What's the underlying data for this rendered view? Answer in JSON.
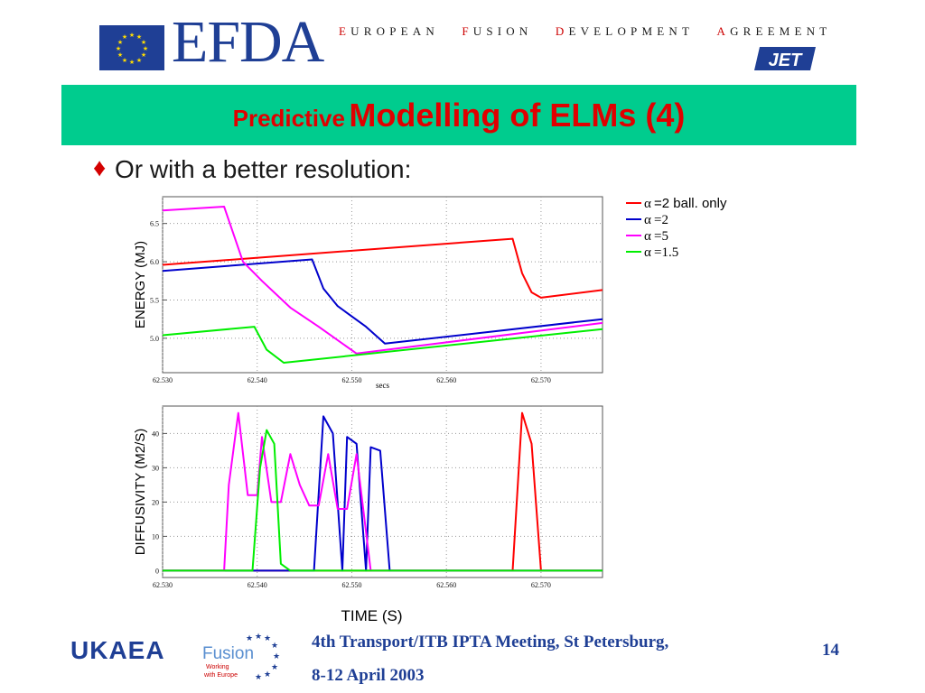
{
  "header": {
    "logo_text": "EFDA",
    "org_name": [
      {
        "cap": "E",
        "rest": "UROPEAN"
      },
      {
        "cap": "F",
        "rest": "USION"
      },
      {
        "cap": "D",
        "rest": "EVELOPMENT"
      },
      {
        "cap": "A",
        "rest": "GREEMENT"
      }
    ],
    "jet_logo_text": "JET"
  },
  "title": {
    "part1": "Predictive",
    "part2": "Modelling of ELMs (4)"
  },
  "bullet": {
    "symbol": "♦",
    "text": "Or with a better resolution:"
  },
  "colors": {
    "title_bar": "#00cc8e",
    "title_text": "#e00000",
    "navy": "#1f3f95"
  },
  "chart_data": [
    {
      "type": "line",
      "ylabel": "ENERGY (MJ)",
      "xlabel": "secs",
      "xlim": [
        62.53,
        62.5765
      ],
      "ylim": [
        4.55,
        6.85
      ],
      "xticks": [
        "62.530",
        "62.540",
        "62.550",
        "62.560",
        "62.570"
      ],
      "xtick_values": [
        62.53,
        62.54,
        62.55,
        62.56,
        62.57
      ],
      "yticks": [
        "5.0",
        "5.5",
        "6.0",
        "6.5"
      ],
      "ytick_values": [
        5.0,
        5.5,
        6.0,
        6.5
      ],
      "legend_position": "right",
      "series": [
        {
          "name": "α=2 ball. only",
          "legend_label": "=2 ball. only",
          "color": "#ff0000",
          "x": [
            62.53,
            62.567,
            62.568,
            62.569,
            62.57,
            62.5765
          ],
          "y": [
            5.96,
            6.3,
            5.85,
            5.6,
            5.53,
            5.63
          ]
        },
        {
          "name": "α=2",
          "legend_label": "=2",
          "color": "#0000cc",
          "x": [
            62.53,
            62.5458,
            62.547,
            62.5485,
            62.5515,
            62.5535,
            62.5765
          ],
          "y": [
            5.88,
            6.03,
            5.65,
            5.42,
            5.15,
            4.93,
            5.25
          ]
        },
        {
          "name": "α=5",
          "legend_label": "=5",
          "color": "#ff00ff",
          "x": [
            62.53,
            62.5365,
            62.5385,
            62.5405,
            62.5435,
            62.5465,
            62.5505,
            62.5765
          ],
          "y": [
            6.67,
            6.72,
            6.0,
            5.75,
            5.4,
            5.15,
            4.8,
            5.2
          ]
        },
        {
          "name": "α=1.5",
          "legend_label": "=1.5",
          "color": "#00ee00",
          "x": [
            62.53,
            62.5397,
            62.541,
            62.5428,
            62.5765
          ],
          "y": [
            5.04,
            5.15,
            4.85,
            4.68,
            5.12
          ]
        }
      ]
    },
    {
      "type": "line",
      "ylabel": "DIFFUSIVITY (M2/S)",
      "xlabel": "TIME (S)",
      "xlim": [
        62.53,
        62.5765
      ],
      "ylim": [
        -2,
        48
      ],
      "xticks": [
        "62.530",
        "62.540",
        "62.550",
        "62.560",
        "62.570"
      ],
      "xtick_values": [
        62.53,
        62.54,
        62.55,
        62.56,
        62.57
      ],
      "yticks": [
        "0",
        "10",
        "20",
        "30",
        "40"
      ],
      "ytick_values": [
        0,
        10,
        20,
        30,
        40
      ],
      "series": [
        {
          "name": "α=2 ball. only",
          "color": "#ff0000",
          "x": [
            62.53,
            62.567,
            62.568,
            62.569,
            62.57,
            62.5765
          ],
          "y": [
            0,
            0,
            46,
            37,
            0,
            0
          ]
        },
        {
          "name": "α=2",
          "color": "#0000cc",
          "x": [
            62.53,
            62.546,
            62.547,
            62.548,
            62.549,
            62.5495,
            62.5505,
            62.5515,
            62.552,
            62.553,
            62.554,
            62.555,
            62.5765
          ],
          "y": [
            0,
            0,
            45,
            40,
            0,
            39,
            37,
            0,
            36,
            35,
            0,
            0,
            0
          ]
        },
        {
          "name": "α=5",
          "color": "#ff00ff",
          "x": [
            62.53,
            62.5365,
            62.537,
            62.538,
            62.539,
            62.54,
            62.5405,
            62.5415,
            62.5425,
            62.5435,
            62.5445,
            62.5455,
            62.5465,
            62.5475,
            62.5485,
            62.5495,
            62.5505,
            62.552,
            62.5765
          ],
          "y": [
            0,
            0,
            25,
            46,
            22,
            22,
            39,
            20,
            20,
            34,
            25,
            19,
            19,
            34,
            18,
            18,
            34,
            0,
            0
          ]
        },
        {
          "name": "α=1.5",
          "color": "#00ee00",
          "x": [
            62.53,
            62.5395,
            62.5403,
            62.541,
            62.5418,
            62.5425,
            62.5435,
            62.5765
          ],
          "y": [
            0,
            0,
            30,
            41,
            37,
            2,
            0,
            0
          ]
        }
      ]
    }
  ],
  "footer": {
    "ukaea": "UKAEA",
    "fusion_logo_lines": [
      "Fusion",
      "Working",
      "with Europe"
    ],
    "meeting_line1": "4th Transport/ITB IPTA Meeting, St Petersburg,",
    "meeting_line2": "8-12 April 2003",
    "page_number": "14"
  }
}
